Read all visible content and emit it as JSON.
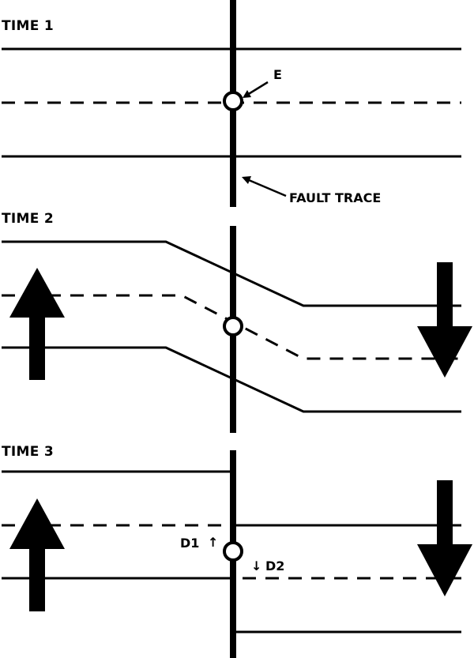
{
  "panels": [
    {
      "title": "TIME 1"
    },
    {
      "title": "TIME 2"
    },
    {
      "title": "TIME 3"
    }
  ],
  "labels": {
    "point": "E",
    "fault_trace": "FAULT TRACE",
    "d1": "D1",
    "d2": "D2"
  },
  "icons": {
    "up_arrow": "up-arrow",
    "down_arrow": "down-arrow",
    "small_up_arrow": "↑",
    "small_down_arrow": "↓"
  },
  "colors": {
    "ink": "#000000",
    "background": "#ffffff"
  }
}
